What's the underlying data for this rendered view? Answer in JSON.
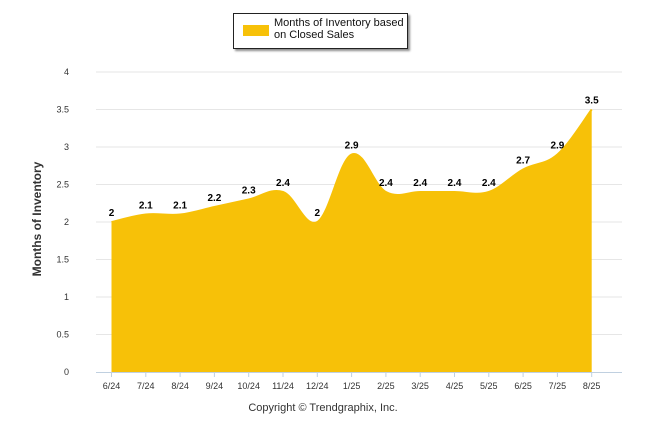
{
  "chart_data": {
    "type": "area",
    "categories": [
      "6/24",
      "7/24",
      "8/24",
      "9/24",
      "10/24",
      "11/24",
      "12/24",
      "1/25",
      "2/25",
      "3/25",
      "4/25",
      "5/25",
      "6/25",
      "7/25",
      "8/25"
    ],
    "series": [
      {
        "name": "Months of Inventory based on Closed Sales",
        "values": [
          2,
          2.1,
          2.1,
          2.2,
          2.3,
          2.4,
          2,
          2.9,
          2.4,
          2.4,
          2.4,
          2.4,
          2.7,
          2.9,
          3.5
        ],
        "color": "#F7C108"
      }
    ],
    "data_labels": [
      "2",
      "2.1",
      "2.1",
      "2.2",
      "2.3",
      "2.4",
      "2",
      "2.9",
      "2.4",
      "2.4",
      "2.4",
      "2.4",
      "2.7",
      "2.9",
      "3.5"
    ],
    "yticks": [
      "0",
      "0.5",
      "1",
      "1.5",
      "2",
      "2.5",
      "3",
      "3.5",
      "4"
    ],
    "ylim": [
      0,
      4
    ],
    "xlabel": "",
    "ylabel": "Months of Inventory",
    "legend_label": "Months of Inventory based on Closed Sales",
    "legend_position": "top-center",
    "grid": true,
    "gridline_color": "#E6E6E6",
    "footer": "Copyright © Trendgraphix, Inc."
  }
}
